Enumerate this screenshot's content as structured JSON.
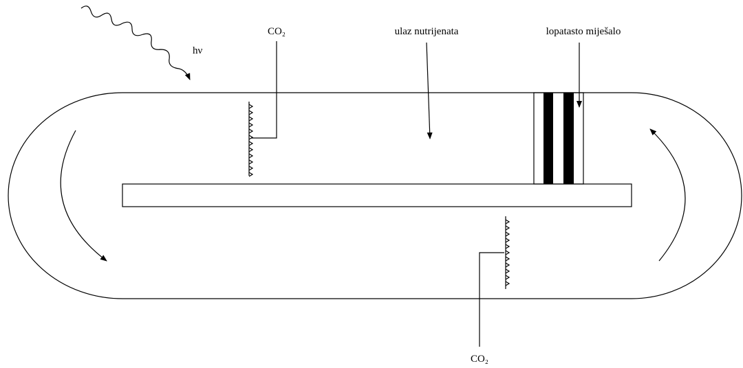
{
  "labels": {
    "light": "hν",
    "co2_top": "CO₂",
    "nutrients": "ulaz nutrijenata",
    "mixer": "lopatasto miješalo",
    "co2_bottom": "CO₂"
  }
}
